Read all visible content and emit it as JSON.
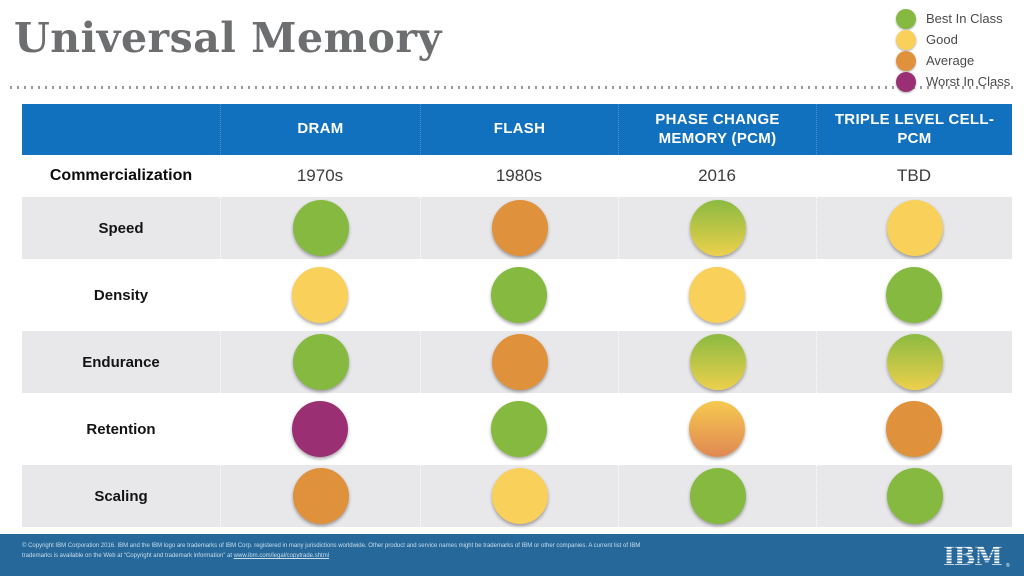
{
  "title": "Universal Memory",
  "legend": {
    "items": [
      {
        "key": "best",
        "label": "Best In Class"
      },
      {
        "key": "good",
        "label": "Good"
      },
      {
        "key": "average",
        "label": "Average"
      },
      {
        "key": "worst",
        "label": "Worst In Class"
      }
    ]
  },
  "chart_data": {
    "type": "table",
    "title": "Universal Memory",
    "columns": [
      "DRAM",
      "FLASH",
      "PHASE CHANGE MEMORY (PCM)",
      "TRIPLE LEVEL CELL-PCM"
    ],
    "rows": [
      {
        "label": "Commercialization",
        "type": "text",
        "values": [
          "1970s",
          "1980s",
          "2016",
          "TBD"
        ]
      },
      {
        "label": "Speed",
        "type": "rating",
        "values": [
          "best",
          "average",
          "best-good",
          "good"
        ]
      },
      {
        "label": "Density",
        "type": "rating",
        "values": [
          "good",
          "best",
          "good",
          "best"
        ]
      },
      {
        "label": "Endurance",
        "type": "rating",
        "values": [
          "best",
          "average",
          "best-good",
          "best-good"
        ]
      },
      {
        "label": "Retention",
        "type": "rating",
        "values": [
          "worst",
          "best",
          "good-average",
          "average"
        ]
      },
      {
        "label": "Scaling",
        "type": "rating",
        "values": [
          "average",
          "good",
          "best",
          "best"
        ]
      }
    ],
    "rating_scale": [
      "best",
      "good",
      "average",
      "worst"
    ]
  },
  "colors": {
    "best": "#86B93F",
    "good": "#F8D05A",
    "average": "#E0913C",
    "worst": "#9B2F73",
    "header_blue": "#1271BE",
    "footer_blue": "#27689A",
    "row_gray": "#E8E8EB",
    "title_gray": "#6D6E70",
    "legend_text": "#4A4A4A",
    "footer_text": "#C9DEED"
  },
  "gradients": {
    "best-good": [
      "#8BBA41",
      "#EDD04C"
    ],
    "good-average": [
      "#F6C94F",
      "#E08853"
    ]
  },
  "footer": {
    "text": "© Copyright IBM Corporation 2016. IBM and the IBM logo are trademarks of IBM Corp. registered in many jurisdictions worldwide. Other product and service names might be trademarks of IBM or other companies. A current list of IBM trademarks is available on the Web at “Copyright and trademark information” at ",
    "link": "www.ibm.com/legal/copytrade.shtml",
    "logo": "IBM"
  }
}
